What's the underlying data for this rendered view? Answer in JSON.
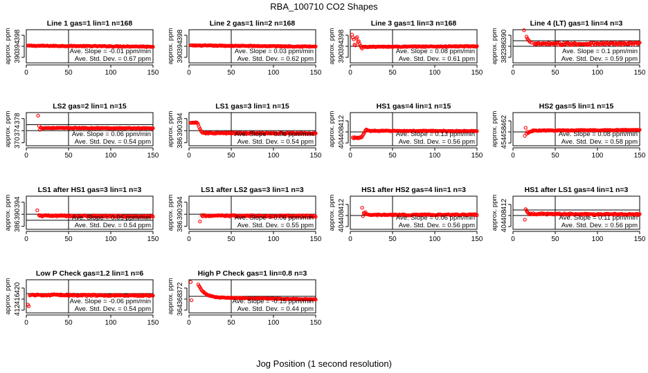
{
  "figure": {
    "title": "RBA_100710  CO2 Shapes",
    "xlabel": "Jog Position (1 second resolution)",
    "ylabel": "approx. ppm",
    "point_color": "#ff0000",
    "axis_color": "#000000"
  },
  "chart_data": [
    {
      "type": "scatter",
      "title": "Line 1 gas=1 lin=1 n=168",
      "xlim": [
        0,
        150
      ],
      "ylim": [
        388,
        400
      ],
      "xticks": [
        0,
        50,
        100,
        150
      ],
      "yticks": [
        390,
        394,
        398
      ],
      "hlines": [
        394
      ],
      "vline": 50,
      "slope_text": "Ave. Slope = -0.01  ppm/min",
      "std_text": "Ave. Std. Dev. = 0.67  ppm",
      "x_start": 2,
      "x_end": 150,
      "level_start": 394.2,
      "level_end": 393.9,
      "noise": 0.15,
      "spikes": [],
      "decay": null
    },
    {
      "type": "scatter",
      "title": "Line 2 gas=1 lin=2 n=168",
      "xlim": [
        0,
        150
      ],
      "ylim": [
        388,
        400
      ],
      "xticks": [
        0,
        50,
        100,
        150
      ],
      "yticks": [
        390,
        394,
        398
      ],
      "hlines": [
        394
      ],
      "vline": 50,
      "slope_text": "Ave. Slope = 0.03  ppm/min",
      "std_text": "Ave. Std. Dev. = 0.62  ppm",
      "x_start": 2,
      "x_end": 150,
      "level_start": 394.3,
      "level_end": 393.9,
      "noise": 0.15,
      "spikes": [],
      "decay": null
    },
    {
      "type": "scatter",
      "title": "Line 3 gas=1 lin=3 n=168",
      "xlim": [
        0,
        150
      ],
      "ylim": [
        388,
        400
      ],
      "xticks": [
        0,
        50,
        100,
        150
      ],
      "yticks": [
        390,
        394,
        398
      ],
      "hlines": [
        394
      ],
      "vline": 50,
      "slope_text": "Ave. Slope = 0.08  ppm/min",
      "std_text": "Ave. Std. Dev. = 0.61  ppm",
      "x_start": 15,
      "x_end": 150,
      "level_start": 393.8,
      "level_end": 394.0,
      "noise": 0.15,
      "spikes": [
        [
          2,
          398.2
        ],
        [
          3,
          397.2
        ],
        [
          4,
          396.5
        ],
        [
          5,
          394.6
        ],
        [
          6,
          394.3
        ],
        [
          7,
          396.8
        ],
        [
          8,
          397.3
        ],
        [
          9,
          395.5
        ],
        [
          10,
          395.8
        ],
        [
          11,
          394.8
        ],
        [
          12,
          394.2
        ],
        [
          13,
          393.6
        ],
        [
          14,
          393.2
        ]
      ],
      "decay": null
    },
    {
      "type": "scatter",
      "title": "Line 4 (LT) gas=1 lin=4 n=3",
      "xlim": [
        0,
        150
      ],
      "ylim": [
        380,
        392
      ],
      "xticks": [
        0,
        50,
        100,
        150
      ],
      "yticks": [
        382,
        386,
        390
      ],
      "hlines": [
        386,
        388
      ],
      "vline": 50,
      "slope_text": "Ave. Slope = 0.1  ppm/min",
      "std_text": "Ave. Std. Dev. = 0.59  ppm",
      "x_start": 25,
      "x_end": 150,
      "level_start": 386.8,
      "level_end": 387.0,
      "noise": 0.45,
      "spikes": [
        [
          13,
          391.8
        ],
        [
          16,
          389.5
        ],
        [
          17,
          388.8
        ],
        [
          18,
          388.3
        ],
        [
          19,
          388.0
        ],
        [
          20,
          387.6
        ],
        [
          22,
          387.3
        ]
      ],
      "decay": null
    },
    {
      "type": "scatter",
      "title": "LS2 gas=2 lin=1 n=15",
      "xlim": [
        0,
        150
      ],
      "ylim": [
        369,
        380
      ],
      "xticks": [
        0,
        50,
        100,
        150
      ],
      "yticks": [
        370,
        374,
        378
      ],
      "hlines": [
        374,
        376
      ],
      "vline": 50,
      "slope_text": "Ave. Slope = 0.06  ppm/min",
      "std_text": "Ave. Std. Dev. = 0.54  ppm",
      "x_start": 18,
      "x_end": 150,
      "level_start": 374.9,
      "level_end": 374.8,
      "noise": 0.12,
      "spikes": [
        [
          14,
          379.0
        ],
        [
          15,
          375.6
        ],
        [
          16,
          374.3
        ],
        [
          17,
          375.0
        ]
      ],
      "decay": null
    },
    {
      "type": "scatter",
      "title": "LS1 gas=3 lin=1 n=15",
      "xlim": [
        0,
        150
      ],
      "ylim": [
        385,
        396
      ],
      "xticks": [
        0,
        50,
        100,
        150
      ],
      "yticks": [
        386,
        390,
        394
      ],
      "hlines": [
        390
      ],
      "vline": 50,
      "slope_text": "Ave. Slope = 0.06  ppm/min",
      "std_text": "Ave. Std. Dev. = 0.54  ppm",
      "x_start": 16,
      "x_end": 150,
      "level_start": 389.2,
      "level_end": 389.1,
      "noise": 0.2,
      "spikes": [
        [
          2,
          392.6
        ],
        [
          3,
          392.6
        ],
        [
          4,
          392.7
        ],
        [
          5,
          392.6
        ],
        [
          6,
          392.7
        ],
        [
          7,
          392.6
        ],
        [
          8,
          392.8
        ],
        [
          9,
          392.7
        ],
        [
          10,
          392.5
        ],
        [
          11,
          392.0
        ],
        [
          12,
          391.2
        ],
        [
          13,
          390.6
        ],
        [
          14,
          390.0
        ],
        [
          15,
          389.6
        ]
      ],
      "decay": null
    },
    {
      "type": "scatter",
      "title": "HS1 gas=4 lin=1 n=15",
      "xlim": [
        0,
        150
      ],
      "ylim": [
        403,
        415
      ],
      "xticks": [
        0,
        50,
        100,
        150
      ],
      "yticks": [
        404,
        408,
        412
      ],
      "hlines": [
        408
      ],
      "vline": 50,
      "slope_text": "Ave. Slope = 0.13  ppm/min",
      "std_text": "Ave. Std. Dev. = 0.56  ppm",
      "x_start": 22,
      "x_end": 150,
      "level_start": 408.4,
      "level_end": 408.3,
      "noise": 0.15,
      "spikes": [
        [
          3,
          406.0
        ],
        [
          4,
          405.7
        ],
        [
          5,
          406.1
        ],
        [
          6,
          405.8
        ],
        [
          7,
          405.9
        ],
        [
          8,
          406.0
        ],
        [
          9,
          405.7
        ],
        [
          10,
          405.9
        ],
        [
          11,
          405.8
        ],
        [
          12,
          406.2
        ],
        [
          13,
          406.0
        ],
        [
          14,
          406.3
        ],
        [
          15,
          406.9
        ],
        [
          16,
          407.4
        ],
        [
          17,
          408.0
        ],
        [
          18,
          408.6
        ],
        [
          19,
          408.9
        ],
        [
          20,
          408.7
        ],
        [
          21,
          408.5
        ]
      ],
      "decay": null
    },
    {
      "type": "scatter",
      "title": "HS2 gas=5 lin=1 n=15",
      "xlim": [
        0,
        150
      ],
      "ylim": [
        453,
        465
      ],
      "xticks": [
        0,
        50,
        100,
        150
      ],
      "yticks": [
        454,
        458,
        462
      ],
      "hlines": [
        458
      ],
      "vline": 50,
      "slope_text": "Ave. Slope = 0.08  ppm/min",
      "std_text": "Ave. Std. Dev. = 0.58  ppm",
      "x_start": 24,
      "x_end": 150,
      "level_start": 458.5,
      "level_end": 458.7,
      "noise": 0.15,
      "spikes": [
        [
          14,
          456.6
        ],
        [
          15,
          459.5
        ],
        [
          16,
          457.3
        ],
        [
          17,
          458.1
        ],
        [
          18,
          457.6
        ],
        [
          19,
          457.9
        ],
        [
          20,
          458.0
        ],
        [
          21,
          458.2
        ],
        [
          22,
          458.3
        ],
        [
          23,
          458.2
        ]
      ],
      "decay": null
    },
    {
      "type": "scatter",
      "title": "LS1 after HS1 gas=3 lin=1 n=3",
      "xlim": [
        0,
        150
      ],
      "ylim": [
        385,
        396
      ],
      "xticks": [
        0,
        50,
        100,
        150
      ],
      "yticks": [
        386,
        390,
        394
      ],
      "hlines": [
        390,
        388
      ],
      "vline": 50,
      "slope_text": "Ave. Slope = 0.06  ppm/min",
      "std_text": "Ave. Std. Dev. = 0.54  ppm",
      "x_start": 15,
      "x_end": 150,
      "level_start": 389.5,
      "level_end": 389.3,
      "noise": 0.25,
      "spikes": [
        [
          13,
          391.3
        ]
      ],
      "decay": null
    },
    {
      "type": "scatter",
      "title": "LS1 after LS2 gas=3 lin=1 n=3",
      "xlim": [
        0,
        150
      ],
      "ylim": [
        385,
        396
      ],
      "xticks": [
        0,
        50,
        100,
        150
      ],
      "yticks": [
        386,
        390,
        394
      ],
      "hlines": [
        390
      ],
      "vline": 50,
      "slope_text": "Ave. Slope = 0.06  ppm/min",
      "std_text": "Ave. Std. Dev. = 0.55  ppm",
      "x_start": 15,
      "x_end": 150,
      "level_start": 389.5,
      "level_end": 389.4,
      "noise": 0.25,
      "spikes": [
        [
          13,
          387.6
        ]
      ],
      "decay": null
    },
    {
      "type": "scatter",
      "title": "HS1 after HS2 gas=4 lin=1 n=3",
      "xlim": [
        0,
        150
      ],
      "ylim": [
        403,
        415
      ],
      "xticks": [
        0,
        50,
        100,
        150
      ],
      "yticks": [
        404,
        408,
        412
      ],
      "hlines": [
        408
      ],
      "vline": 50,
      "slope_text": "Ave. Slope = 0.06  ppm/min",
      "std_text": "Ave. Std. Dev. = 0.56  ppm",
      "x_start": 20,
      "x_end": 150,
      "level_start": 408.2,
      "level_end": 408.3,
      "noise": 0.2,
      "spikes": [
        [
          14,
          410.8
        ],
        [
          15,
          407.8
        ],
        [
          16,
          409.0
        ],
        [
          17,
          408.8
        ],
        [
          18,
          409.2
        ],
        [
          19,
          408.6
        ]
      ],
      "decay": null
    },
    {
      "type": "scatter",
      "title": "HS1 after LS1 gas=4 lin=1 n=3",
      "xlim": [
        0,
        150
      ],
      "ylim": [
        403,
        415
      ],
      "xticks": [
        0,
        50,
        100,
        150
      ],
      "yticks": [
        404,
        408,
        412
      ],
      "hlines": [
        408,
        410
      ],
      "vline": 50,
      "slope_text": "Ave. Slope = 0.11  ppm/min",
      "std_text": "Ave. Std. Dev. = 0.56  ppm",
      "x_start": 20,
      "x_end": 150,
      "level_start": 408.6,
      "level_end": 408.4,
      "noise": 0.25,
      "spikes": [
        [
          14,
          406.5
        ],
        [
          15,
          410.3
        ],
        [
          16,
          409.8
        ],
        [
          17,
          409.2
        ],
        [
          18,
          408.9
        ],
        [
          19,
          408.7
        ]
      ],
      "decay": null
    },
    {
      "type": "scatter",
      "title": "Low P Check gas=1.2 lin=1 n=6",
      "xlim": [
        0,
        150
      ],
      "ylim": [
        411,
        423
      ],
      "xticks": [
        0,
        50,
        100,
        150
      ],
      "yticks": [
        412,
        416,
        420
      ],
      "hlines": [
        418
      ],
      "vline": 50,
      "slope_text": "Ave. Slope = -0.06  ppm/min",
      "std_text": "Ave. Std. Dev. = 0.54  ppm",
      "x_start": 4,
      "x_end": 150,
      "level_start": 417.5,
      "level_end": 417.3,
      "noise": 0.25,
      "spikes": [
        [
          2,
          414.0
        ],
        [
          3,
          413.4
        ]
      ],
      "decay": null
    },
    {
      "type": "scatter",
      "title": "High P Check gas=1 lin=0.8 n=3",
      "xlim": [
        0,
        150
      ],
      "ylim": [
        363,
        375
      ],
      "xticks": [
        0,
        50,
        100,
        150
      ],
      "yticks": [
        364,
        368,
        372
      ],
      "hlines": [
        369
      ],
      "vline": 50,
      "slope_text": "Ave. Slope = -0.15  ppm/min",
      "std_text": "Ave. Std. Dev. = 0.44  ppm",
      "x_start": 11,
      "x_end": 150,
      "level_start": 368.6,
      "level_end": 367.9,
      "noise": 0.12,
      "spikes": [
        [
          2,
          374.2
        ],
        [
          3,
          367.6
        ]
      ],
      "decay": {
        "amp": 4.8,
        "tau": 7
      }
    }
  ]
}
